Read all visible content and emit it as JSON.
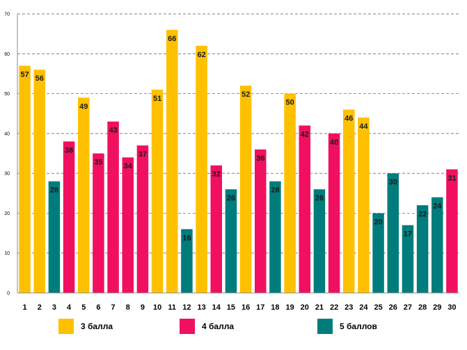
{
  "chart_data": {
    "type": "bar",
    "title": "",
    "xlabel": "",
    "ylabel": "",
    "ylim": [
      0,
      70
    ],
    "yticks": [
      0,
      10,
      20,
      30,
      40,
      50,
      60,
      70
    ],
    "grid": true,
    "categories": [
      "1",
      "2",
      "3",
      "4",
      "5",
      "6",
      "7",
      "8",
      "9",
      "10",
      "11",
      "12",
      "13",
      "14",
      "15",
      "16",
      "17",
      "18",
      "19",
      "20",
      "21",
      "22",
      "23",
      "24",
      "25",
      "26",
      "27",
      "28",
      "29",
      "30"
    ],
    "values": [
      57,
      56,
      28,
      38,
      49,
      35,
      43,
      34,
      37,
      51,
      66,
      16,
      62,
      32,
      26,
      52,
      36,
      28,
      50,
      42,
      26,
      40,
      46,
      44,
      20,
      30,
      17,
      22,
      24,
      31
    ],
    "grades": [
      "3",
      "3",
      "5",
      "4",
      "3",
      "4",
      "4",
      "4",
      "4",
      "3",
      "3",
      "5",
      "3",
      "4",
      "5",
      "3",
      "4",
      "5",
      "3",
      "4",
      "5",
      "4",
      "3",
      "3",
      "5",
      "5",
      "5",
      "5",
      "5",
      "4"
    ],
    "legend": [
      {
        "grade": "3",
        "label": "3 балла",
        "color": "#FFC000"
      },
      {
        "grade": "4",
        "label": "4 балла",
        "color": "#F0105F"
      },
      {
        "grade": "5",
        "label": "5 баллов",
        "color": "#007C7C"
      }
    ]
  }
}
